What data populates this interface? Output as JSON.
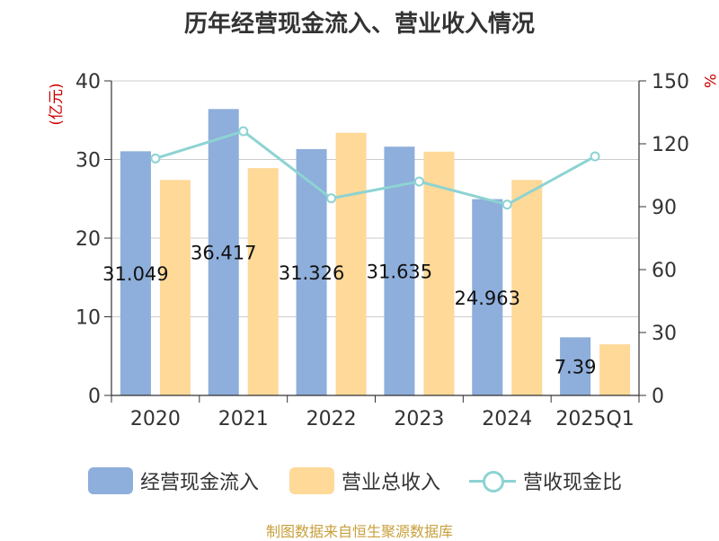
{
  "chart_data": {
    "type": "bar",
    "title": "历年经营现金流入、营业收入情况",
    "categories": [
      "2020",
      "2021",
      "2022",
      "2023",
      "2024",
      "2025Q1"
    ],
    "y_left": {
      "label": "(亿元)",
      "ticks": [
        "0",
        "10",
        "20",
        "30",
        "40"
      ],
      "range": [
        0,
        40
      ]
    },
    "y_right": {
      "label": "%",
      "ticks": [
        "0",
        "30",
        "60",
        "90",
        "120",
        "150"
      ],
      "range": [
        0,
        150
      ]
    },
    "series": [
      {
        "name": "经营现金流入",
        "type": "bar",
        "axis": "left",
        "color": "#8eaedb",
        "values": [
          31.049,
          36.417,
          31.326,
          31.635,
          24.963,
          7.39
        ],
        "labels": [
          "31.049",
          "36.417",
          "31.326",
          "31.635",
          "24.963",
          "7.39"
        ]
      },
      {
        "name": "营业总收入",
        "type": "bar",
        "axis": "left",
        "color": "#fed998",
        "values": [
          27.4,
          28.9,
          33.4,
          31.0,
          27.4,
          6.5
        ]
      },
      {
        "name": "营收现金比",
        "type": "line",
        "axis": "right",
        "color": "#8dd3d3",
        "values": [
          113,
          126,
          94,
          102,
          91,
          114
        ]
      }
    ],
    "grid": true,
    "legend_position": "bottom"
  },
  "source": "制图数据来自恒生聚源数据库"
}
